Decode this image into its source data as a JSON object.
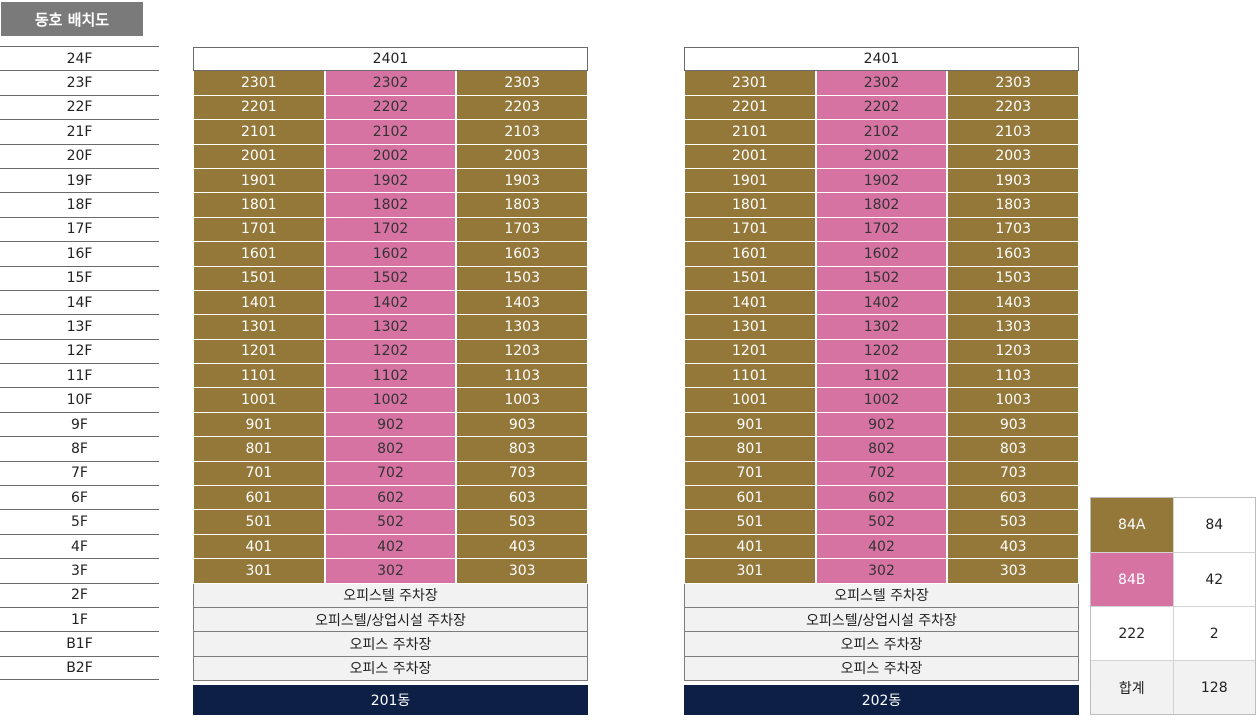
{
  "title": "동호 배치도",
  "floors": [
    "24F",
    "23F",
    "22F",
    "21F",
    "20F",
    "19F",
    "18F",
    "17F",
    "16F",
    "15F",
    "14F",
    "13F",
    "12F",
    "11F",
    "10F",
    "9F",
    "8F",
    "7F",
    "6F",
    "5F",
    "4F",
    "3F",
    "2F",
    "1F",
    "B1F",
    "B2F"
  ],
  "colors": {
    "type_84A": "#94783a",
    "type_84B": "#d673a2",
    "building_label_bg": "#0d1f44",
    "facility_bg": "#f2f2f2",
    "title_bg": "#7a7a7a"
  },
  "buildings": [
    {
      "name": "201동",
      "penthouse": "2401",
      "units": [
        [
          "2301",
          "2302",
          "2303"
        ],
        [
          "2201",
          "2202",
          "2203"
        ],
        [
          "2101",
          "2102",
          "2103"
        ],
        [
          "2001",
          "2002",
          "2003"
        ],
        [
          "1901",
          "1902",
          "1903"
        ],
        [
          "1801",
          "1802",
          "1803"
        ],
        [
          "1701",
          "1702",
          "1703"
        ],
        [
          "1601",
          "1602",
          "1603"
        ],
        [
          "1501",
          "1502",
          "1503"
        ],
        [
          "1401",
          "1402",
          "1403"
        ],
        [
          "1301",
          "1302",
          "1303"
        ],
        [
          "1201",
          "1202",
          "1203"
        ],
        [
          "1101",
          "1102",
          "1103"
        ],
        [
          "1001",
          "1002",
          "1003"
        ],
        [
          "901",
          "902",
          "903"
        ],
        [
          "801",
          "802",
          "803"
        ],
        [
          "701",
          "702",
          "703"
        ],
        [
          "601",
          "602",
          "603"
        ],
        [
          "501",
          "502",
          "503"
        ],
        [
          "401",
          "402",
          "403"
        ],
        [
          "301",
          "302",
          "303"
        ]
      ],
      "facilities": [
        "오피스텔 주차장",
        "오피스텔/상업시설 주차장",
        "오피스 주차장",
        "오피스 주차장"
      ]
    },
    {
      "name": "202동",
      "penthouse": "2401",
      "units": [
        [
          "2301",
          "2302",
          "2303"
        ],
        [
          "2201",
          "2202",
          "2203"
        ],
        [
          "2101",
          "2102",
          "2103"
        ],
        [
          "2001",
          "2002",
          "2003"
        ],
        [
          "1901",
          "1902",
          "1903"
        ],
        [
          "1801",
          "1802",
          "1803"
        ],
        [
          "1701",
          "1702",
          "1703"
        ],
        [
          "1601",
          "1602",
          "1603"
        ],
        [
          "1501",
          "1502",
          "1503"
        ],
        [
          "1401",
          "1402",
          "1403"
        ],
        [
          "1301",
          "1302",
          "1303"
        ],
        [
          "1201",
          "1202",
          "1203"
        ],
        [
          "1101",
          "1102",
          "1103"
        ],
        [
          "1001",
          "1002",
          "1003"
        ],
        [
          "901",
          "902",
          "903"
        ],
        [
          "801",
          "802",
          "803"
        ],
        [
          "701",
          "702",
          "703"
        ],
        [
          "601",
          "602",
          "603"
        ],
        [
          "501",
          "502",
          "503"
        ],
        [
          "401",
          "402",
          "403"
        ],
        [
          "301",
          "302",
          "303"
        ]
      ],
      "facilities": [
        "오피스텔 주차장",
        "오피스텔/상업시설 주차장",
        "오피스 주차장",
        "오피스 주차장"
      ]
    }
  ],
  "legend": [
    {
      "label": "84A",
      "count": "84",
      "style": "brown"
    },
    {
      "label": "84B",
      "count": "42",
      "style": "pink"
    },
    {
      "label": "222",
      "count": "2",
      "style": "plain"
    },
    {
      "label": "합계",
      "count": "128",
      "style": "total"
    }
  ]
}
